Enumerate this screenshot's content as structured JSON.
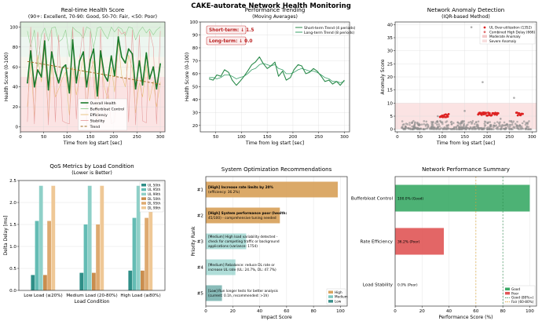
{
  "title": "CAKE-autorate Network Health Monitoring",
  "colors": {
    "overall": "#1a7a2a",
    "bufferbloat": "#8fce8f",
    "efficiency": "#e8c07a",
    "stability": "#e6a0a0",
    "trend": "#a06a1c",
    "good": "#3aaa66",
    "poor": "#e05555",
    "anomaly_point": "#8c8c8c",
    "anomaly_red": "#dd2222",
    "teal": "#5bb8b0",
    "tan": "#d9a460"
  },
  "chart_data": [
    {
      "id": "health",
      "type": "line",
      "title": "Real-time Health Score",
      "subtitle": "(90+: Excellent, 70-90: Good, 50-70: Fair, <50: Poor)",
      "xlabel": "Time from log start [sec]",
      "ylabel": "Health Score (0-100)",
      "xlim": [
        0,
        310
      ],
      "ylim": [
        -5,
        105
      ],
      "xticks": [
        0,
        50,
        100,
        150,
        200,
        250,
        300
      ],
      "yticks": [
        0,
        20,
        40,
        60,
        80,
        100
      ],
      "bands": [
        {
          "from": 90,
          "to": 105,
          "label": "Excellent"
        },
        {
          "from": 70,
          "to": 90,
          "label": "Good"
        },
        {
          "from": 50,
          "to": 70,
          "label": "Fair"
        },
        {
          "from": -5,
          "to": 50,
          "label": "Poor"
        }
      ],
      "x": [
        15,
        22,
        30,
        37,
        45,
        52,
        60,
        67,
        75,
        82,
        90,
        97,
        105,
        112,
        120,
        127,
        135,
        142,
        150,
        157,
        165,
        172,
        180,
        187,
        195,
        202,
        210,
        217,
        225,
        232,
        240,
        247,
        255,
        262,
        270,
        277,
        285,
        292,
        300
      ],
      "series": [
        {
          "name": "Overall Health",
          "values": [
            44,
            76,
            40,
            57,
            50,
            86,
            37,
            75,
            55,
            44,
            59,
            62,
            34,
            87,
            44,
            66,
            75,
            40,
            67,
            78,
            31,
            76,
            52,
            46,
            71,
            51,
            90,
            70,
            64,
            78,
            73,
            38,
            66,
            42,
            74,
            48,
            60,
            38,
            63
          ]
        },
        {
          "name": "Bufferbloat Control",
          "values": [
            96,
            80,
            97,
            60,
            92,
            99,
            86,
            99,
            100,
            85,
            88,
            97,
            70,
            100,
            96,
            94,
            89,
            100,
            98,
            79,
            99,
            100,
            93,
            88,
            100,
            95,
            100,
            98,
            91,
            100,
            99,
            87,
            96,
            100,
            94,
            98,
            92,
            97,
            100
          ]
        },
        {
          "name": "Efficiency",
          "values": [
            20,
            65,
            10,
            72,
            45,
            80,
            8,
            62,
            30,
            38,
            48,
            55,
            12,
            60,
            32,
            50,
            70,
            18,
            55,
            66,
            5,
            70,
            40,
            28,
            60,
            35,
            85,
            52,
            40,
            72,
            58,
            14,
            44,
            30,
            62,
            26,
            46,
            20,
            45
          ]
        },
        {
          "name": "Stability",
          "values": [
            5,
            100,
            3,
            95,
            60,
            94,
            2,
            97,
            5,
            92,
            6,
            4,
            3,
            99,
            8,
            68,
            100,
            0,
            96,
            45,
            2,
            98,
            4,
            40,
            3,
            5,
            98,
            93,
            95,
            5,
            97,
            2,
            92,
            6,
            4,
            96,
            80,
            3,
            96
          ]
        },
        {
          "name": "Trend",
          "values": [
            65.5,
            64.9,
            64.3,
            63.7,
            63.1,
            62.5,
            61.9,
            61.3,
            60.7,
            60.1,
            59.5,
            58.9,
            58.3,
            57.7,
            57.1,
            56.5,
            55.9,
            55.3,
            54.7,
            54.1,
            53.5,
            52.9,
            52.3,
            51.7,
            51.1,
            50.5,
            49.9,
            49.3,
            48.7,
            48.1,
            47.5,
            46.9,
            46.3,
            45.7,
            45.1,
            44.5,
            43.9,
            43.3,
            42.7
          ]
        }
      ],
      "legend": [
        "Overall Health",
        "Bufferbloat Control",
        "Efficiency",
        "Stability",
        "Trend"
      ]
    },
    {
      "id": "trending",
      "type": "line",
      "title": "Performance Trending",
      "subtitle": "(Moving Averages)",
      "xlabel": "Time from log start [sec]",
      "ylabel": "Health Score (0-100)",
      "xlim": [
        20,
        310
      ],
      "ylim": [
        15,
        100
      ],
      "xticks": [
        50,
        100,
        150,
        200,
        250,
        300
      ],
      "yticks": [
        20,
        30,
        40,
        50,
        60,
        70,
        80,
        90,
        100
      ],
      "annotations": [
        "Short-term: ↓ 1.5",
        "Long-term: ↓ 0.0"
      ],
      "x": [
        37,
        45,
        52,
        60,
        67,
        75,
        82,
        90,
        97,
        105,
        112,
        120,
        127,
        135,
        142,
        150,
        157,
        165,
        172,
        180,
        187,
        195,
        202,
        210,
        217,
        225,
        232,
        240,
        247,
        255,
        262,
        270,
        277,
        285,
        292,
        300
      ],
      "series": [
        {
          "name": "Short-term Trend (4 periods)",
          "values": [
            56,
            55,
            59,
            58,
            63,
            61,
            55,
            51,
            54,
            58,
            62,
            67,
            69,
            73,
            68,
            64,
            66,
            69,
            58,
            62,
            55,
            57,
            63,
            67,
            66,
            60,
            61,
            64,
            62,
            58,
            54,
            55,
            52,
            54,
            51,
            55
          ]
        },
        {
          "name": "Long-term Trend (8 periods)",
          "values": [
            57,
            57,
            56,
            57,
            59,
            59,
            58,
            56,
            57,
            58,
            60,
            63,
            64,
            67,
            68,
            67,
            66,
            67,
            64,
            63,
            60,
            60,
            61,
            63,
            64,
            63,
            62,
            62,
            61,
            59,
            57,
            56,
            54,
            54,
            53,
            54
          ]
        }
      ],
      "legend": [
        "Short-term Trend (4 periods)",
        "Long-term Trend (8 periods)"
      ]
    },
    {
      "id": "anomaly",
      "type": "scatter",
      "title": "Network Anomaly Detection",
      "subtitle": "(IQR-based Method)",
      "xlabel": "Time from log start [sec]",
      "ylabel": "Anomaly Score",
      "xlim": [
        -5,
        310
      ],
      "ylim": [
        -1,
        41
      ],
      "xticks": [
        0,
        50,
        100,
        150,
        200,
        250,
        300
      ],
      "yticks": [
        0,
        5,
        10,
        15,
        20,
        25,
        30,
        35,
        40
      ],
      "severe_band": [
        0,
        10
      ],
      "outliers": [
        {
          "x": 165,
          "y": 39
        },
        {
          "x": 190,
          "y": 18
        },
        {
          "x": 260,
          "y": 12
        },
        {
          "x": 150,
          "y": 7
        },
        {
          "x": 90,
          "y": 5
        },
        {
          "x": 230,
          "y": 4
        }
      ],
      "ul_cluster_count": 1352,
      "legend": [
        "UL Over-utilization (1352)",
        "Combined High Delay (666)",
        "Moderate Anomaly",
        "Severe Anomaly"
      ]
    },
    {
      "id": "qos",
      "type": "bar",
      "title": "QoS Metrics by Load Condition",
      "subtitle": "(Lower is Better)",
      "xlabel": "Load Condition",
      "ylabel": "Delta Delay [ms]",
      "ylim": [
        0,
        2.5
      ],
      "yticks": [
        0.0,
        0.5,
        1.0,
        1.5,
        2.0,
        2.5
      ],
      "categories": [
        "Low Load (≤20%)",
        "Medium Load (20-80%)",
        "High Load (≥80%)"
      ],
      "series": [
        {
          "name": "UL 50th",
          "values": [
            0.35,
            0.4,
            0.45
          ]
        },
        {
          "name": "UL 95th",
          "values": [
            1.58,
            1.5,
            1.65
          ]
        },
        {
          "name": "UL 99th",
          "values": [
            2.38,
            2.38,
            2.38
          ]
        },
        {
          "name": "DL 50th",
          "values": [
            0.35,
            0.4,
            0.45
          ]
        },
        {
          "name": "DL 95th",
          "values": [
            1.58,
            1.5,
            1.65
          ]
        },
        {
          "name": "DL 99th",
          "values": [
            2.38,
            2.38,
            2.38
          ]
        }
      ]
    },
    {
      "id": "recommend",
      "type": "bar",
      "orientation": "horizontal",
      "title": "System Optimization Recommendations",
      "xlabel": "Impact Score",
      "ylabel": "Priority Rank",
      "xlim": [
        0,
        105
      ],
      "xticks": [
        0,
        20,
        40,
        60,
        80,
        100
      ],
      "categories": [
        "#1",
        "#2",
        "#3",
        "#4",
        "#5"
      ],
      "values": [
        98,
        55,
        30,
        22,
        12
      ],
      "levels": [
        "High",
        "High",
        "Medium",
        "Medium",
        "Low"
      ],
      "labels": [
        [
          "[High] Increase rate limits by 20%",
          "(efficiency: 36.2%)"
        ],
        [
          "[High] System performance poor (health:",
          "45/100) - comprehensive tuning needed"
        ],
        [
          "[Medium] High load variability detected -",
          "check for competing traffic or background",
          "applications (variance: 1754)"
        ],
        [
          "[Medium] Rebalance: reduce DL rate or",
          "increase UL rate (UL: 24.7%, DL: 47.7%)"
        ],
        [
          "[Low] Run longer tests for better analysis",
          "(current: 0.1h, recommended: >1h)"
        ]
      ],
      "legend": [
        "High",
        "Medium",
        "Low"
      ]
    },
    {
      "id": "summary",
      "type": "bar",
      "orientation": "horizontal",
      "title": "Network Performance Summary",
      "xlabel": "Performance Score (%)",
      "xlim": [
        0,
        105
      ],
      "xticks": [
        0,
        20,
        40,
        60,
        80,
        100
      ],
      "categories": [
        "Bufferbloat Control",
        "Rate Efficiency",
        "Load Stability"
      ],
      "values": [
        100.0,
        36.2,
        0.0
      ],
      "value_labels": [
        "100.0% (Good)",
        "36.2% (Poor)",
        "0.0% (Poor)"
      ],
      "thresholds": [
        {
          "name": "Good (80%+)",
          "value": 80
        },
        {
          "name": "Fair (60-80%)",
          "value": 60
        }
      ],
      "legend": [
        "Good",
        "Poor",
        "Good (80%+)",
        "Fair (60-80%)"
      ]
    }
  ]
}
